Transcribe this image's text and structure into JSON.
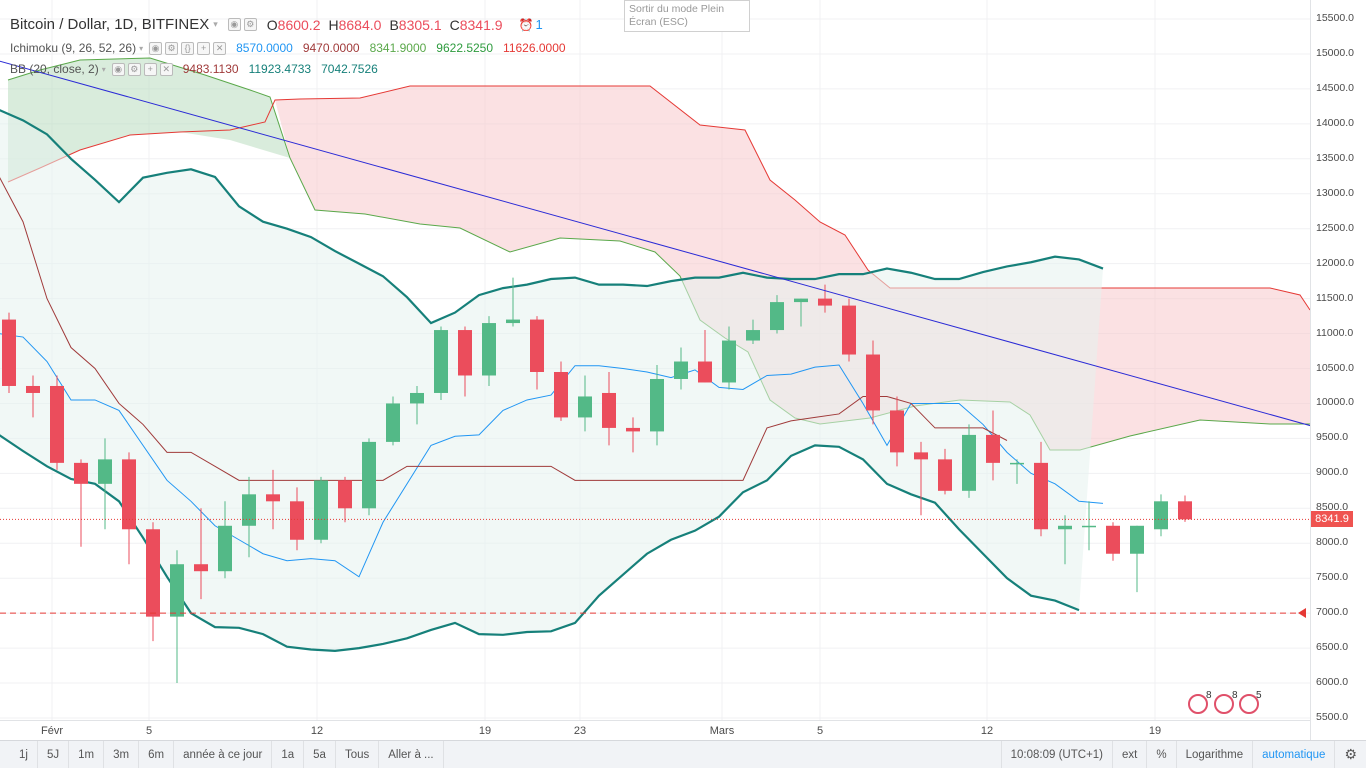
{
  "header": {
    "symbol_title": "Bitcoin / Dollar, 1D, BITFINEX",
    "ohlc": {
      "o_label": "O",
      "o": "8600.2",
      "h_label": "H",
      "h": "8684.0",
      "l_label": "B",
      "l": "8305.1",
      "c_label": "C",
      "c": "8341.9"
    },
    "alert_count": "1"
  },
  "indicators": {
    "ichimoku": {
      "label": "Ichimoku (9, 26, 52, 26)",
      "v1": "8570.0000",
      "v2": "9470.0000",
      "v3": "8341.9000",
      "v4": "9622.5250",
      "v5": "11626.0000"
    },
    "bb": {
      "label": "BB (20, close, 2)",
      "v1": "9483.1130",
      "v2": "11923.4733",
      "v3": "7042.7526"
    }
  },
  "tooltip": {
    "line1": "Sortir du mode Plein",
    "line2": "Écran (ESC)"
  },
  "price_axis": {
    "ticks": [
      "15500.0",
      "15000.0",
      "14500.0",
      "14000.0",
      "13500.0",
      "13000.0",
      "12500.0",
      "12000.0",
      "11500.0",
      "11000.0",
      "10500.0",
      "10000.0",
      "9500.0",
      "9000.0",
      "8500.0",
      "8000.0",
      "7500.0",
      "7000.0",
      "6500.0",
      "6000.0",
      "5500.0"
    ],
    "current_price": "8341.9"
  },
  "time_axis": {
    "labels": [
      "Févr",
      "5",
      "12",
      "19",
      "23",
      "Mars",
      "5",
      "12",
      "19"
    ]
  },
  "event_badges": {
    "b1": "8",
    "b2": "8",
    "b3": "5"
  },
  "bottom_bar": {
    "ranges": [
      "1j",
      "5J",
      "1m",
      "3m",
      "6m",
      "année à ce jour",
      "1a",
      "5a",
      "Tous",
      "Aller à ..."
    ],
    "clock": "10:08:09 (UTC+1)",
    "ext": "ext",
    "percent": "%",
    "log": "Logarithme",
    "auto": "automatique"
  },
  "colors": {
    "up": "#53b987",
    "down": "#eb4d5c",
    "trend": "#2b2bd6",
    "bb_band": "#16807a",
    "kijun": "#a03a3a",
    "tenkan": "#2196f3",
    "chikou": "#5aa84a"
  },
  "chart_data": {
    "type": "candlestick",
    "symbol": "BTCUSD",
    "interval": "1D",
    "ylim": [
      5500,
      15600
    ],
    "candles": [
      {
        "o": 11200,
        "h": 11300,
        "l": 10150,
        "c": 10250
      },
      {
        "o": 10250,
        "h": 10400,
        "l": 9800,
        "c": 10150
      },
      {
        "o": 10250,
        "h": 10400,
        "l": 9050,
        "c": 9150
      },
      {
        "o": 9150,
        "h": 9200,
        "l": 7950,
        "c": 8850
      },
      {
        "o": 8850,
        "h": 9500,
        "l": 8200,
        "c": 9200
      },
      {
        "o": 9200,
        "h": 9300,
        "l": 7700,
        "c": 8200
      },
      {
        "o": 8200,
        "h": 8300,
        "l": 6600,
        "c": 6950
      },
      {
        "o": 6950,
        "h": 7900,
        "l": 6000,
        "c": 7700
      },
      {
        "o": 7700,
        "h": 8500,
        "l": 7200,
        "c": 7600
      },
      {
        "o": 7600,
        "h": 8600,
        "l": 7500,
        "c": 8250
      },
      {
        "o": 8250,
        "h": 8950,
        "l": 7800,
        "c": 8700
      },
      {
        "o": 8700,
        "h": 9050,
        "l": 8200,
        "c": 8600
      },
      {
        "o": 8600,
        "h": 8800,
        "l": 7900,
        "c": 8050
      },
      {
        "o": 8050,
        "h": 8950,
        "l": 8000,
        "c": 8900
      },
      {
        "o": 8900,
        "h": 8950,
        "l": 8300,
        "c": 8500
      },
      {
        "o": 8500,
        "h": 9500,
        "l": 8400,
        "c": 9450
      },
      {
        "o": 9450,
        "h": 10100,
        "l": 9400,
        "c": 10000
      },
      {
        "o": 10000,
        "h": 10250,
        "l": 9700,
        "c": 10150
      },
      {
        "o": 10150,
        "h": 11100,
        "l": 10050,
        "c": 11050
      },
      {
        "o": 11050,
        "h": 11100,
        "l": 10100,
        "c": 10400
      },
      {
        "o": 10400,
        "h": 11250,
        "l": 10250,
        "c": 11150
      },
      {
        "o": 11150,
        "h": 11800,
        "l": 11100,
        "c": 11200
      },
      {
        "o": 11200,
        "h": 11250,
        "l": 10200,
        "c": 10450
      },
      {
        "o": 10450,
        "h": 10600,
        "l": 9750,
        "c": 9800
      },
      {
        "o": 9800,
        "h": 10400,
        "l": 9600,
        "c": 10100
      },
      {
        "o": 10150,
        "h": 10450,
        "l": 9400,
        "c": 9650
      },
      {
        "o": 9650,
        "h": 9800,
        "l": 9300,
        "c": 9600
      },
      {
        "o": 9600,
        "h": 10550,
        "l": 9400,
        "c": 10350
      },
      {
        "o": 10350,
        "h": 10800,
        "l": 10200,
        "c": 10600
      },
      {
        "o": 10600,
        "h": 11050,
        "l": 10300,
        "c": 10300
      },
      {
        "o": 10300,
        "h": 11100,
        "l": 10200,
        "c": 10900
      },
      {
        "o": 10900,
        "h": 11200,
        "l": 10850,
        "c": 11050
      },
      {
        "o": 11050,
        "h": 11550,
        "l": 11000,
        "c": 11450
      },
      {
        "o": 11450,
        "h": 11500,
        "l": 11100,
        "c": 11500
      },
      {
        "o": 11500,
        "h": 11700,
        "l": 11300,
        "c": 11400
      },
      {
        "o": 11400,
        "h": 11500,
        "l": 10600,
        "c": 10700
      },
      {
        "o": 10700,
        "h": 10900,
        "l": 9700,
        "c": 9900
      },
      {
        "o": 9900,
        "h": 10100,
        "l": 9100,
        "c": 9300
      },
      {
        "o": 9300,
        "h": 9450,
        "l": 8400,
        "c": 9200
      },
      {
        "o": 9200,
        "h": 9350,
        "l": 8700,
        "c": 8750
      },
      {
        "o": 8750,
        "h": 9700,
        "l": 8650,
        "c": 9550
      },
      {
        "o": 9550,
        "h": 9900,
        "l": 8900,
        "c": 9150
      },
      {
        "o": 9150,
        "h": 9200,
        "l": 8850,
        "c": 9150
      },
      {
        "o": 9150,
        "h": 9450,
        "l": 8100,
        "c": 8200
      },
      {
        "o": 8200,
        "h": 8400,
        "l": 7700,
        "c": 8250
      },
      {
        "o": 8250,
        "h": 8600,
        "l": 7900,
        "c": 8250
      },
      {
        "o": 8250,
        "h": 8300,
        "l": 7750,
        "c": 7850
      },
      {
        "o": 7850,
        "h": 8250,
        "l": 7300,
        "c": 8250
      },
      {
        "o": 8200,
        "h": 8700,
        "l": 8100,
        "c": 8600
      },
      {
        "o": 8600,
        "h": 8684,
        "l": 8305.1,
        "c": 8341.9
      }
    ],
    "bb_upper": [
      null,
      null,
      null,
      null,
      null,
      null,
      null,
      null,
      null,
      null,
      null,
      null,
      null,
      null,
      null,
      null,
      null,
      null,
      11100,
      11300,
      11550,
      11650,
      11700,
      11780,
      11800,
      11700,
      11700,
      11680,
      11750,
      11800,
      11800,
      11870,
      11800,
      11780,
      11780,
      11850,
      11850,
      11930,
      11870,
      11780,
      11780,
      11880,
      11960,
      12020,
      12100,
      12060,
      11930
    ],
    "bb_middle_hint": "not drawn",
    "bb_lower": [
      9550,
      9320,
      9100,
      8920,
      8850,
      8600,
      8080,
      7520,
      7000,
      6800,
      6790,
      6700,
      6520,
      6480,
      6460,
      6500,
      6560,
      6640,
      6760,
      6860,
      6700,
      6690,
      6730,
      6740,
      6860,
      7250,
      7550,
      7850,
      8050,
      8180,
      8380,
      8730,
      8900,
      9250,
      9400,
      9380,
      9200,
      8850,
      8700,
      8580,
      8200,
      7850,
      7500,
      7250,
      7180,
      7042.75
    ],
    "bb_lower_start_index": 0,
    "bb_upper_early": [
      14200,
      14050,
      13850,
      13500,
      13200,
      12880,
      13230,
      13300,
      13350,
      13240,
      12820,
      12600,
      12500,
      12380,
      12180,
      12000,
      11820,
      11520,
      11150
    ],
    "tenkan": [
      11000,
      10950,
      10600,
      10050,
      10050,
      9900,
      9400,
      8900,
      8600,
      8250,
      8050,
      7850,
      7750,
      7780,
      7750,
      7520,
      8300,
      8850,
      9400,
      9530,
      9550,
      9900,
      10050,
      10120,
      10540,
      10540,
      10500,
      10450,
      10370,
      10480,
      10230,
      10200,
      10400,
      10420,
      10520,
      10550,
      10000,
      9400,
      10000,
      10000,
      10000,
      9700,
      9300,
      9000,
      8850,
      8600,
      8570
    ],
    "kijun": [
      13250,
      12600,
      11500,
      10800,
      10500,
      10000,
      9700,
      9300,
      9300,
      9100,
      8900,
      8900,
      8900,
      8900,
      8900,
      8900,
      8900,
      9100,
      9100,
      9100,
      9100,
      9100,
      9100,
      9100,
      8900,
      8900,
      8900,
      8900,
      8900,
      8900,
      8900,
      8900,
      9650,
      9750,
      9800,
      9850,
      10100,
      10100,
      10000,
      9650,
      9650,
      9650,
      9470
    ],
    "trendline": {
      "from": [
        0,
        14900
      ],
      "to": [
        55.5,
        9600
      ]
    },
    "horizontal_level": 7000,
    "current_price": 8341.9
  }
}
